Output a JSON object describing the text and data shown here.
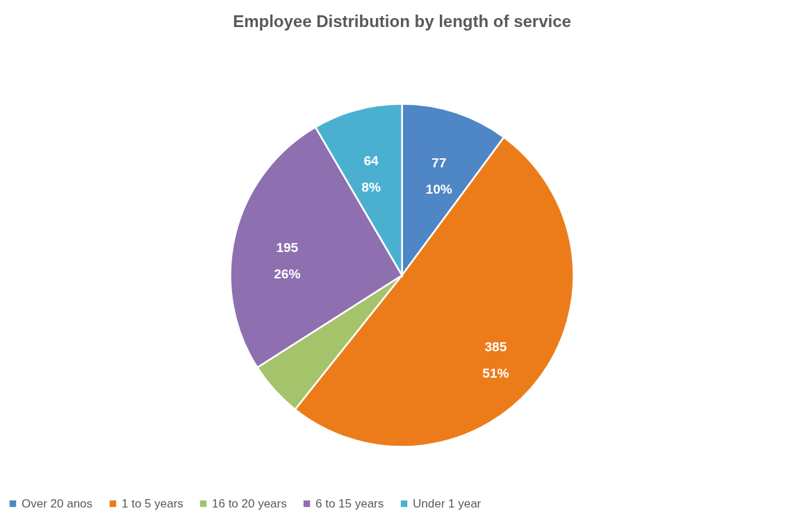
{
  "chart_data": {
    "type": "pie",
    "title": "Employee Distribution by length of service",
    "categories": [
      "Over 20 anos",
      "1 to 5 years",
      "16 to 20 years",
      "6 to 15 years",
      "Under 1 year"
    ],
    "values": [
      77,
      385,
      40,
      195,
      64
    ],
    "colors": [
      "#4e86c6",
      "#ec7c1a",
      "#a4c36a",
      "#8e6fb0",
      "#4bb0d0"
    ],
    "value_labels": [
      "77\n10%",
      "385\n51%",
      null,
      "195\n26%",
      "64\n8%"
    ],
    "legend": "bottom"
  }
}
